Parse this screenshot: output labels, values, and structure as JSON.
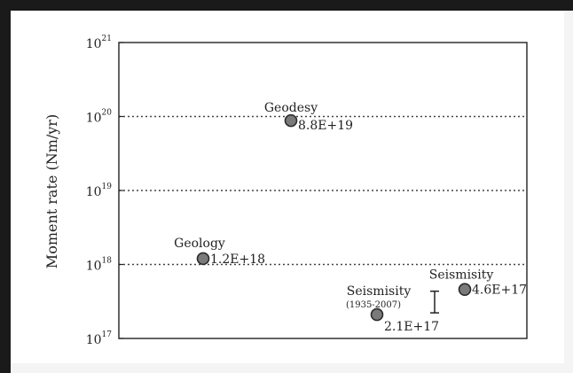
{
  "chart_data": {
    "type": "scatter",
    "ylabel": "Moment rate (Nm/yr)",
    "yscale": "log",
    "ylim": [
      1e+17,
      1e+21
    ],
    "ytick_labels": [
      {
        "base": "10",
        "exp": "17"
      },
      {
        "base": "10",
        "exp": "18"
      },
      {
        "base": "10",
        "exp": "19"
      },
      {
        "base": "10",
        "exp": "20"
      },
      {
        "base": "10",
        "exp": "21"
      }
    ],
    "gridlines": [
      1e+18,
      1e+19,
      1e+20
    ],
    "grid_style": "dotted",
    "points": [
      {
        "name": "Geodesy",
        "value": 8.8e+19,
        "label": "8.8E+19"
      },
      {
        "name": "Geology",
        "value": 1.2e+18,
        "label": "1.2E+18"
      },
      {
        "name": "Seismisity",
        "subtitle": "(1935-2007)",
        "value": 2.1e+17,
        "label": "2.1E+17"
      },
      {
        "name": "Seismisity",
        "value": 4.6e+17,
        "label": "4.6E+17"
      }
    ],
    "error_bar": {
      "low": 2.1e+17,
      "high": 4.6e+17
    },
    "colors": {
      "marker_fill": "#7a7a7a",
      "marker_stroke": "#2a2a2a",
      "axis": "#222222",
      "frame": "#1a1a1a"
    }
  }
}
